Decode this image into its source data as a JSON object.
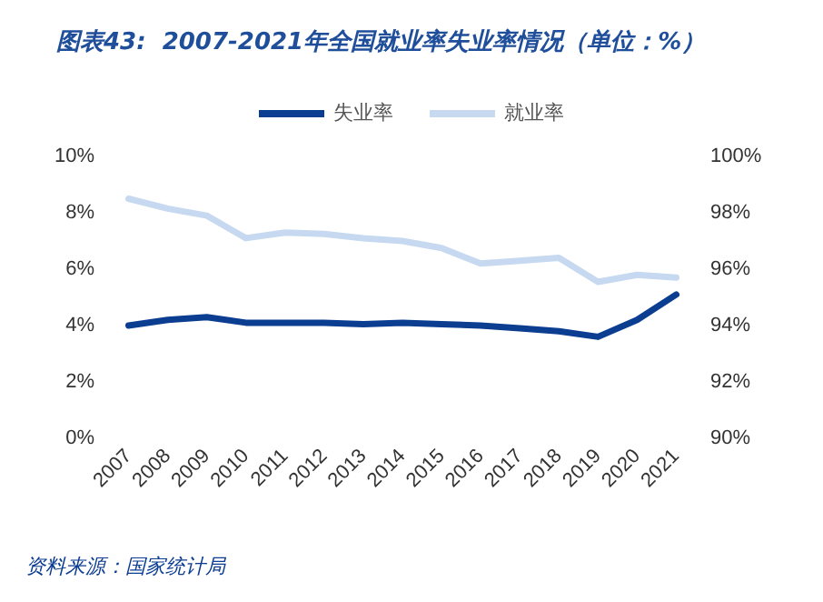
{
  "chart_data": {
    "type": "line",
    "title": "图表43:  2007-2021年全国就业率失业率情况（单位：%）",
    "categories": [
      "2007",
      "2008",
      "2009",
      "2010",
      "2011",
      "2012",
      "2013",
      "2014",
      "2015",
      "2016",
      "2017",
      "2018",
      "2019",
      "2020",
      "2021"
    ],
    "series": [
      {
        "name": "失业率",
        "color": "#0b3d91",
        "values": [
          4.0,
          4.2,
          4.3,
          4.1,
          4.1,
          4.1,
          4.05,
          4.1,
          4.05,
          4.0,
          3.9,
          3.8,
          3.6,
          4.2,
          5.1
        ]
      },
      {
        "name": "就业率",
        "color": "#c6d9f1",
        "axis": "y2",
        "values": [
          98.5,
          98.15,
          97.9,
          97.1,
          97.3,
          97.25,
          97.1,
          97.0,
          96.75,
          96.2,
          96.3,
          96.4,
          95.55,
          95.8,
          95.7
        ]
      }
    ],
    "ylim": [
      0,
      10
    ],
    "yticks": [
      {
        "value": 0,
        "label": "0%"
      },
      {
        "value": 2,
        "label": "2%"
      },
      {
        "value": 4,
        "label": "4%"
      },
      {
        "value": 6,
        "label": "6%"
      },
      {
        "value": 8,
        "label": "8%"
      },
      {
        "value": 10,
        "label": "10%"
      }
    ],
    "y2lim": [
      90,
      100
    ],
    "y2ticks": [
      {
        "value": 90,
        "label": "90%"
      },
      {
        "value": 92,
        "label": "92%"
      },
      {
        "value": 94,
        "label": "94%"
      },
      {
        "value": 96,
        "label": "96%"
      },
      {
        "value": 98,
        "label": "98%"
      },
      {
        "value": 100,
        "label": "100%"
      }
    ],
    "legend": "top",
    "grid": false,
    "marker": "none",
    "line_style": "solid",
    "annotations": [
      "资料来源：国家统计局"
    ]
  }
}
